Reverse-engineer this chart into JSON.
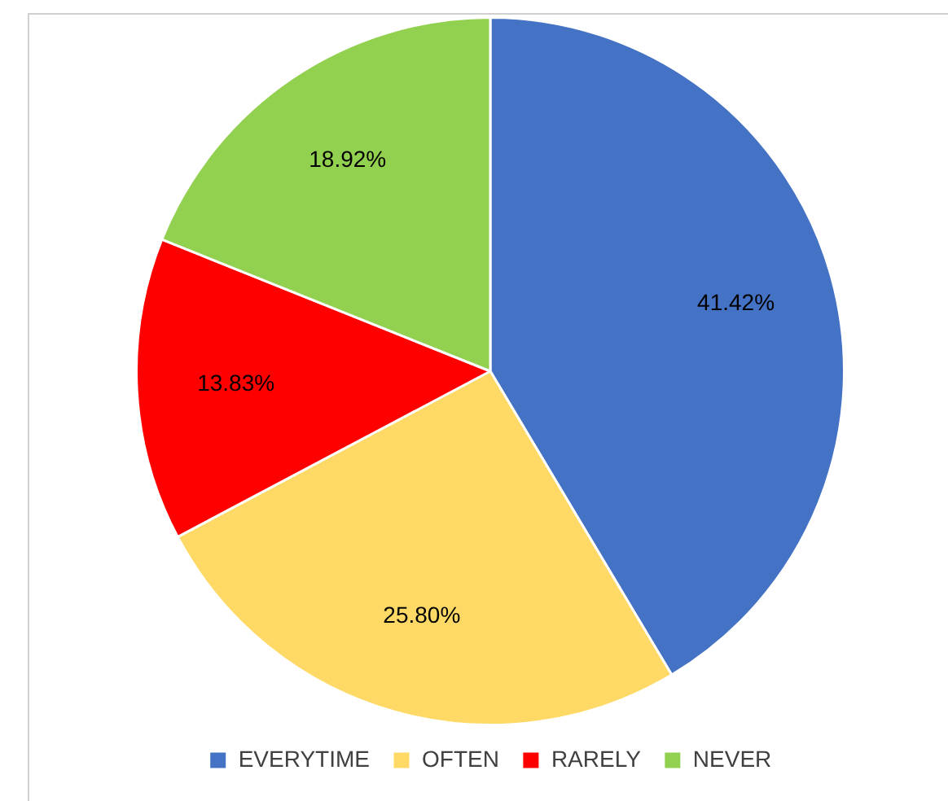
{
  "chart_data": {
    "type": "pie",
    "categories": [
      "EVERYTIME",
      "OFTEN",
      "RARELY",
      "NEVER"
    ],
    "values": [
      41.42,
      25.8,
      13.83,
      18.92
    ],
    "colors": [
      "#4472c4",
      "#ffd966",
      "#ff0000",
      "#92d050"
    ],
    "value_labels": [
      "41.42%",
      "25.80%",
      "13.83%",
      "18.92%"
    ],
    "legend": "bottom"
  }
}
